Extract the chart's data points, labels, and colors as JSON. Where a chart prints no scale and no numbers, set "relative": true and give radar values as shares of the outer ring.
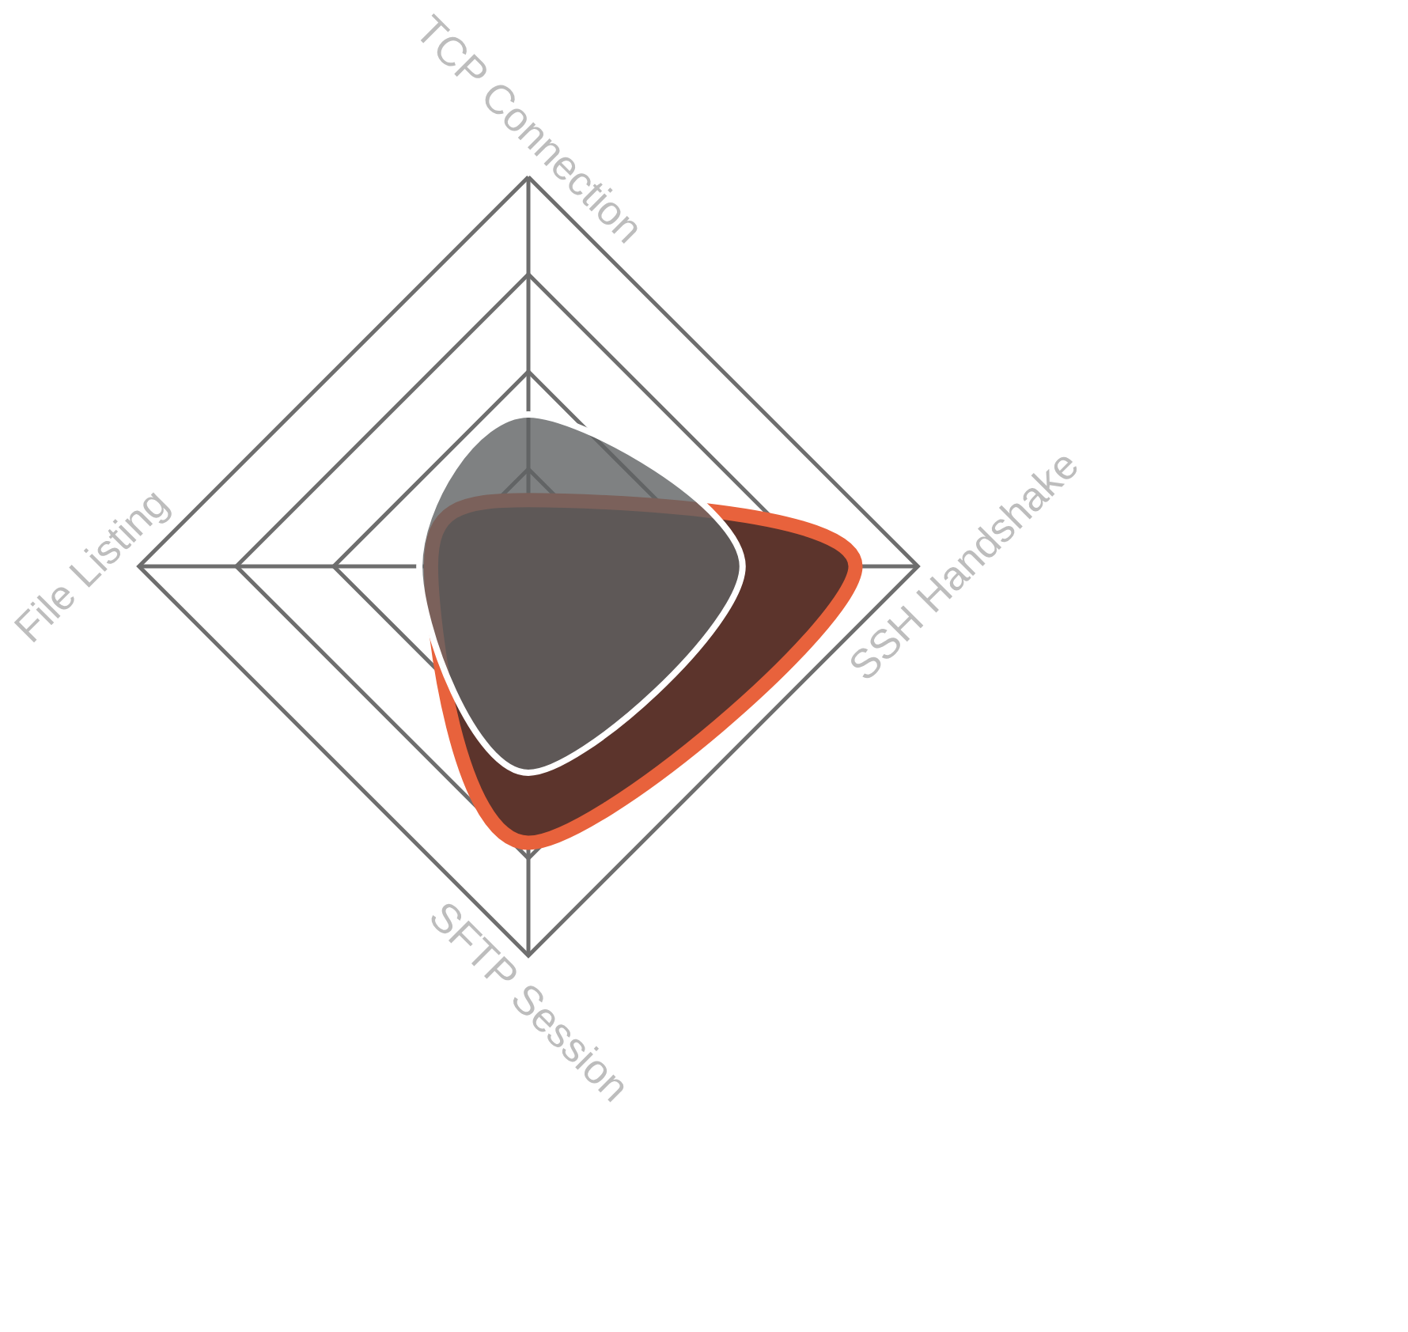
{
  "chart_data": {
    "type": "radar",
    "relative": true,
    "categories": [
      "TCP Connection",
      "SSH Handshake",
      "SFTP Session",
      "File Listing"
    ],
    "series": [
      {
        "color": "#5c342c",
        "values": [
          0.17,
          0.84,
          0.71,
          0.25
        ]
      },
      {
        "color": "#5f6163",
        "values": [
          0.39,
          0.55,
          0.53,
          0.28
        ]
      }
    ]
  }
}
